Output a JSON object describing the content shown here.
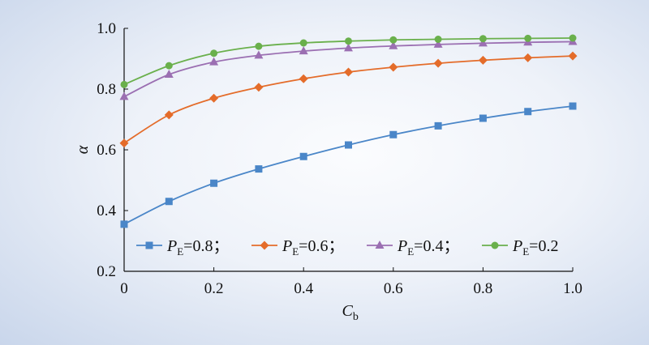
{
  "chart_data": {
    "type": "line",
    "xlabel": "C",
    "xlabel_sub": "b",
    "ylabel": "α",
    "xlim": [
      0,
      1.0
    ],
    "ylim": [
      0.2,
      1.0
    ],
    "x_ticks": [
      "0",
      "0.2",
      "0.4",
      "0.6",
      "0.8",
      "1.0"
    ],
    "y_ticks": [
      "0.2",
      "0.4",
      "0.6",
      "0.8",
      "1.0"
    ],
    "grid": false,
    "legend_position": "bottom",
    "x": [
      0,
      0.1,
      0.2,
      0.3,
      0.4,
      0.5,
      0.6,
      0.7,
      0.8,
      0.9,
      1.0
    ],
    "series": [
      {
        "name": "P_E=0.8;",
        "label_main": "P",
        "label_sub": "E",
        "label_rest": "=0.8；",
        "color": "#4a86c8",
        "marker": "square",
        "values": [
          0.355,
          0.43,
          0.49,
          0.537,
          0.578,
          0.616,
          0.65,
          0.679,
          0.704,
          0.726,
          0.744
        ]
      },
      {
        "name": "P_E=0.6;",
        "label_main": "P",
        "label_sub": "E",
        "label_rest": "=0.6；",
        "color": "#e46c2a",
        "marker": "diamond",
        "values": [
          0.622,
          0.715,
          0.77,
          0.806,
          0.834,
          0.856,
          0.872,
          0.885,
          0.895,
          0.903,
          0.909
        ]
      },
      {
        "name": "P_E=0.4;",
        "label_main": "P",
        "label_sub": "E",
        "label_rest": "=0.4；",
        "color": "#9b6fb2",
        "marker": "triangle",
        "values": [
          0.775,
          0.848,
          0.889,
          0.911,
          0.925,
          0.935,
          0.942,
          0.947,
          0.951,
          0.954,
          0.956
        ]
      },
      {
        "name": "P_E=0.2",
        "label_main": "P",
        "label_sub": "E",
        "label_rest": "=0.2",
        "color": "#6ab04c",
        "marker": "circle",
        "values": [
          0.815,
          0.877,
          0.918,
          0.941,
          0.952,
          0.958,
          0.962,
          0.964,
          0.966,
          0.967,
          0.968
        ]
      }
    ]
  }
}
